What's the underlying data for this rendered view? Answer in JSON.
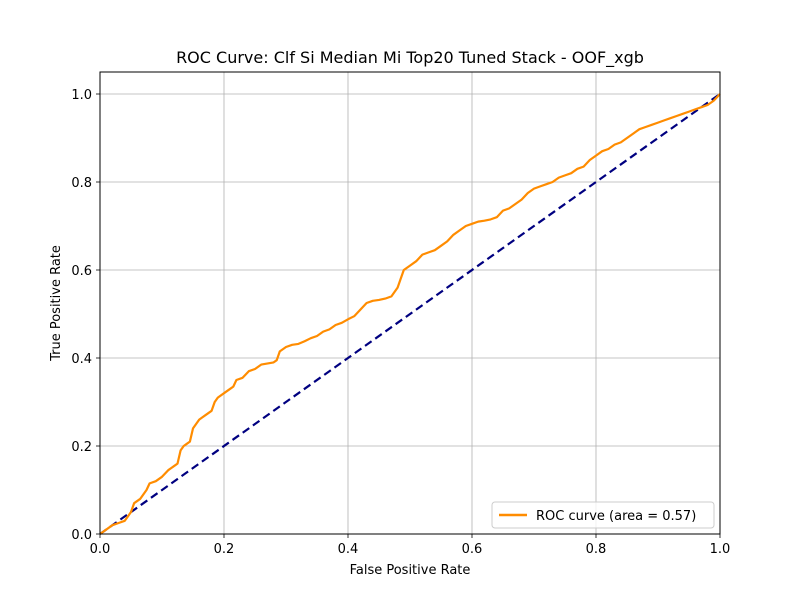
{
  "chart_data": {
    "type": "line",
    "title": "ROC Curve: Clf Si Median Mi Top20 Tuned Stack - OOF_xgb",
    "xlabel": "False Positive Rate",
    "ylabel": "True Positive Rate",
    "xlim": [
      0.0,
      1.0
    ],
    "ylim": [
      0.0,
      1.05
    ],
    "xticks": [
      "0.0",
      "0.2",
      "0.4",
      "0.6",
      "0.8",
      "1.0"
    ],
    "yticks": [
      "0.0",
      "0.2",
      "0.4",
      "0.6",
      "0.8",
      "1.0"
    ],
    "grid": true,
    "legend_position": "lower right",
    "series": [
      {
        "name": "ROC curve (area = 0.57)",
        "color": "#ff8c00",
        "style": "solid",
        "x": [
          0.0,
          0.02,
          0.03,
          0.04,
          0.045,
          0.05,
          0.055,
          0.065,
          0.07,
          0.075,
          0.08,
          0.09,
          0.1,
          0.11,
          0.115,
          0.12,
          0.125,
          0.13,
          0.135,
          0.14,
          0.145,
          0.15,
          0.155,
          0.16,
          0.165,
          0.17,
          0.18,
          0.185,
          0.19,
          0.2,
          0.21,
          0.215,
          0.22,
          0.23,
          0.24,
          0.25,
          0.26,
          0.28,
          0.285,
          0.29,
          0.3,
          0.31,
          0.32,
          0.33,
          0.34,
          0.35,
          0.36,
          0.37,
          0.38,
          0.39,
          0.4,
          0.41,
          0.42,
          0.43,
          0.44,
          0.45,
          0.46,
          0.47,
          0.48,
          0.485,
          0.49,
          0.5,
          0.51,
          0.52,
          0.53,
          0.54,
          0.55,
          0.56,
          0.57,
          0.58,
          0.59,
          0.6,
          0.61,
          0.62,
          0.63,
          0.64,
          0.65,
          0.66,
          0.67,
          0.68,
          0.69,
          0.7,
          0.71,
          0.72,
          0.73,
          0.74,
          0.75,
          0.76,
          0.77,
          0.78,
          0.79,
          0.8,
          0.81,
          0.82,
          0.83,
          0.84,
          0.85,
          0.86,
          0.87,
          0.88,
          0.89,
          0.9,
          0.91,
          0.92,
          0.93,
          0.94,
          0.95,
          0.96,
          0.97,
          0.98,
          0.99,
          1.0
        ],
        "y": [
          0.0,
          0.02,
          0.025,
          0.03,
          0.04,
          0.05,
          0.07,
          0.08,
          0.09,
          0.1,
          0.115,
          0.12,
          0.13,
          0.145,
          0.15,
          0.155,
          0.16,
          0.19,
          0.2,
          0.205,
          0.21,
          0.24,
          0.25,
          0.26,
          0.265,
          0.27,
          0.28,
          0.3,
          0.31,
          0.32,
          0.33,
          0.335,
          0.35,
          0.355,
          0.37,
          0.375,
          0.385,
          0.39,
          0.395,
          0.415,
          0.425,
          0.43,
          0.432,
          0.438,
          0.445,
          0.45,
          0.46,
          0.465,
          0.475,
          0.48,
          0.488,
          0.495,
          0.51,
          0.525,
          0.53,
          0.532,
          0.535,
          0.54,
          0.56,
          0.58,
          0.6,
          0.61,
          0.62,
          0.635,
          0.64,
          0.645,
          0.655,
          0.665,
          0.68,
          0.69,
          0.7,
          0.705,
          0.71,
          0.712,
          0.715,
          0.72,
          0.735,
          0.74,
          0.75,
          0.76,
          0.775,
          0.785,
          0.79,
          0.795,
          0.8,
          0.81,
          0.815,
          0.82,
          0.83,
          0.835,
          0.85,
          0.86,
          0.87,
          0.875,
          0.885,
          0.89,
          0.9,
          0.91,
          0.92,
          0.925,
          0.93,
          0.935,
          0.94,
          0.945,
          0.95,
          0.955,
          0.96,
          0.965,
          0.97,
          0.975,
          0.985,
          1.0
        ]
      },
      {
        "color": "#000080",
        "style": "dashed",
        "x": [
          0.0,
          1.0
        ],
        "y": [
          0.0,
          1.0
        ]
      }
    ]
  }
}
